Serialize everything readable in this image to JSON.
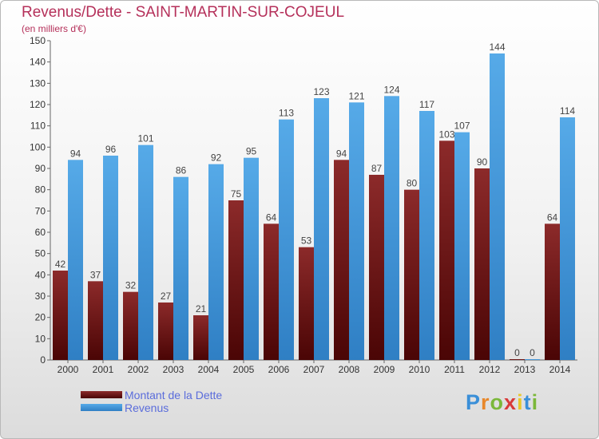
{
  "chart_data": {
    "type": "bar",
    "title": "Revenus/Dette - SAINT-MARTIN-SUR-COJEUL",
    "subtitle": "(en milliers d'€)",
    "categories": [
      "2000",
      "2001",
      "2002",
      "2003",
      "2004",
      "2005",
      "2006",
      "2007",
      "2008",
      "2009",
      "2010",
      "2011",
      "2012",
      "2013",
      "2014"
    ],
    "series": [
      {
        "name": "Montant de la Dette",
        "color": "#7a1a1a",
        "values": [
          42,
          37,
          32,
          27,
          21,
          75,
          64,
          53,
          94,
          87,
          80,
          103,
          90,
          0,
          64
        ]
      },
      {
        "name": "Revenus",
        "color": "#4a9be0",
        "values": [
          94,
          96,
          101,
          86,
          92,
          95,
          113,
          123,
          121,
          124,
          117,
          107,
          144,
          0,
          114
        ]
      }
    ],
    "yticks": [
      0,
      10,
      20,
      30,
      40,
      50,
      60,
      70,
      80,
      90,
      100,
      110,
      120,
      130,
      140,
      150
    ],
    "ylim": [
      0,
      150
    ],
    "grid": false,
    "legend_position": "bottom-left"
  },
  "logo": {
    "letters": [
      "P",
      "r",
      "o",
      "x",
      "i",
      "t",
      "i"
    ],
    "colors": [
      "#3a8fd8",
      "#e8872a",
      "#7bb83a",
      "#d83a3a",
      "#e8c82a",
      "#3a8fd8",
      "#7bb83a"
    ]
  }
}
